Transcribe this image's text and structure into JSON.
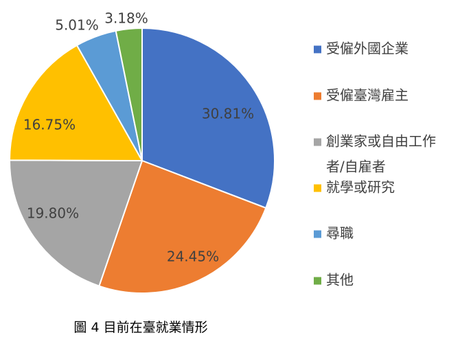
{
  "chart_data": {
    "type": "pie",
    "title": "",
    "categories": [
      "受僱外國企業",
      "受僱臺灣雇主",
      "創業家或自由工作者/自雇者",
      "就學或研究",
      "尋職",
      "其他"
    ],
    "values": [
      30.81,
      24.45,
      19.8,
      16.75,
      5.01,
      3.18
    ],
    "data_labels": [
      "30.81%",
      "24.45%",
      "19.80%",
      "16.75%",
      "5.01%",
      "3.18%"
    ],
    "colors": [
      "#4472C4",
      "#ED7D31",
      "#A5A5A5",
      "#FFC000",
      "#5B9BD5",
      "#70AD47"
    ],
    "legend_position": "right",
    "start_angle": "12 o'clock",
    "direction": "clockwise"
  },
  "legend": {
    "items": [
      {
        "lines": [
          "受僱外國企業"
        ]
      },
      {
        "lines": [
          "受僱臺灣雇主"
        ]
      },
      {
        "lines": [
          "創業家或自由工作",
          "者/自雇者"
        ]
      },
      {
        "lines": [
          "就學或研究"
        ]
      },
      {
        "lines": [
          "尋職"
        ]
      },
      {
        "lines": [
          "其他"
        ]
      }
    ]
  },
  "caption": "圖 4 目前在臺就業情形"
}
